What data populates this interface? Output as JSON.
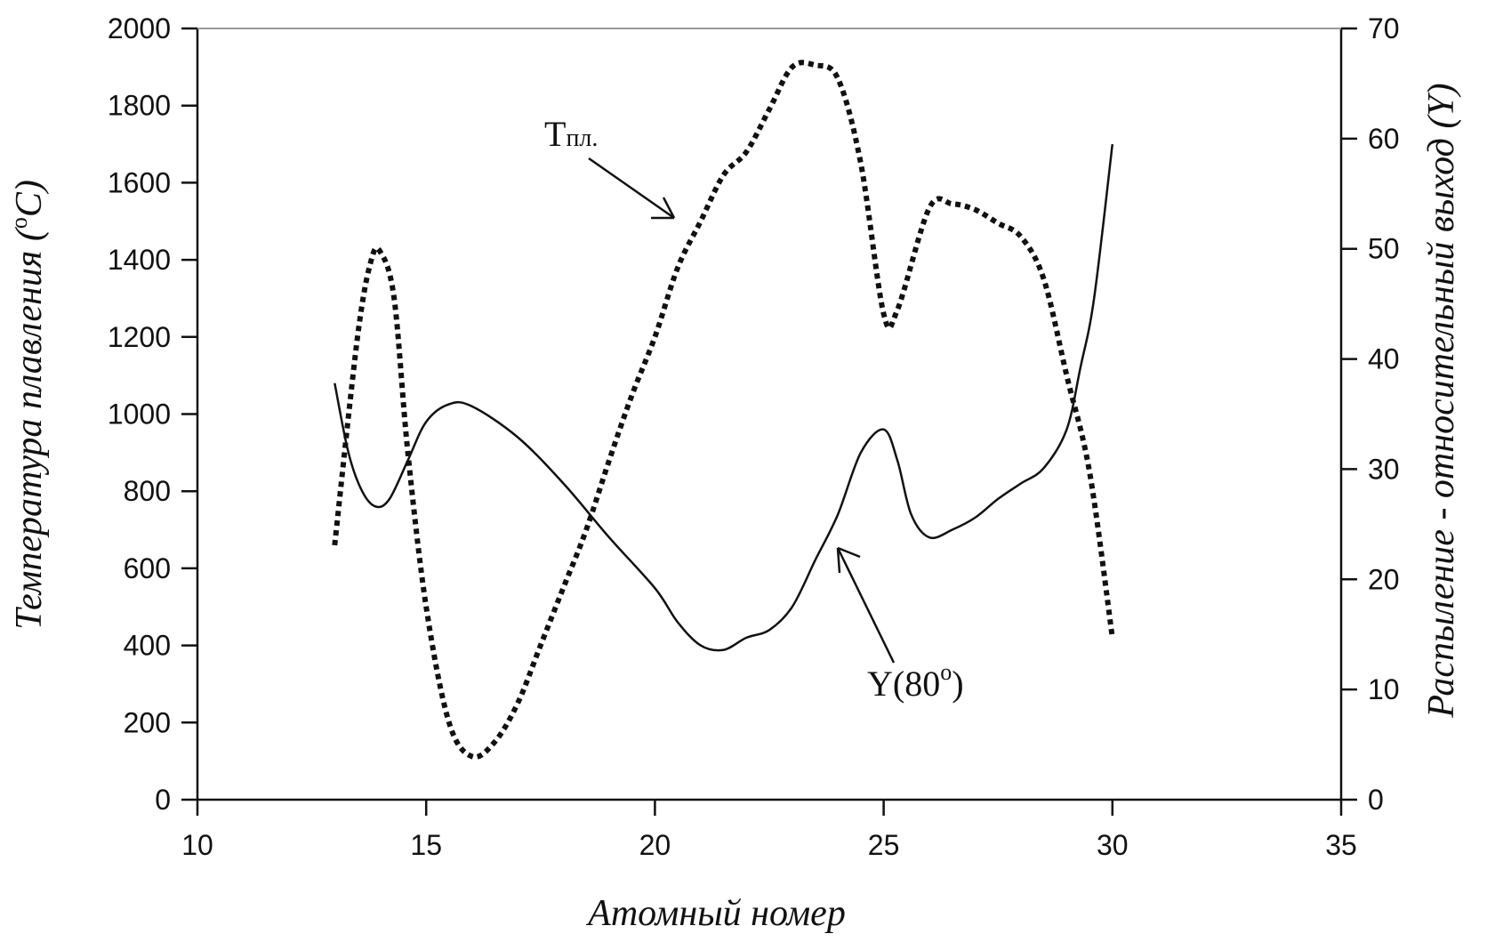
{
  "chart_data": {
    "type": "line",
    "title": "",
    "xlabel": "Атомный номер",
    "ylabel_left": "Температура плавления (°C)",
    "ylabel_left_parts": {
      "text": "Температура плавления (",
      "sup": "o",
      "unit": "C)"
    },
    "ylabel_right": "Распыление - относительный выход (Y)",
    "xlim": [
      10,
      35
    ],
    "ylim_left": [
      0,
      2000
    ],
    "ylim_right": [
      0,
      70
    ],
    "x_ticks": [
      "10",
      "15",
      "20",
      "25",
      "30",
      "35"
    ],
    "y_left_ticks": [
      "0",
      "200",
      "400",
      "600",
      "800",
      "1000",
      "1200",
      "1400",
      "1600",
      "1800",
      "2000"
    ],
    "y_right_ticks": [
      "0",
      "10",
      "20",
      "30",
      "40",
      "50",
      "60",
      "70"
    ],
    "grid": false,
    "legend": "none",
    "annotations": [
      {
        "label": "Tпл.",
        "main": "T",
        "sub": "пл.",
        "series": "melting"
      },
      {
        "label": "Y(80°)",
        "main": "Y(80",
        "sup": "o",
        "close": ")",
        "series": "yield"
      }
    ],
    "series": [
      {
        "id": "melting",
        "axis": "left",
        "style": "dotted",
        "color": "#111111",
        "points": [
          [
            13,
            660
          ],
          [
            13.5,
            1200
          ],
          [
            13.8,
            1400
          ],
          [
            14.0,
            1420
          ],
          [
            14.3,
            1300
          ],
          [
            14.6,
            900
          ],
          [
            15.0,
            500
          ],
          [
            15.5,
            200
          ],
          [
            16.0,
            112
          ],
          [
            16.5,
            150
          ],
          [
            17.0,
            250
          ],
          [
            17.5,
            400
          ],
          [
            18.0,
            550
          ],
          [
            18.5,
            700
          ],
          [
            19.0,
            880
          ],
          [
            19.5,
            1050
          ],
          [
            20.0,
            1200
          ],
          [
            20.5,
            1380
          ],
          [
            21.0,
            1500
          ],
          [
            21.5,
            1620
          ],
          [
            22.0,
            1680
          ],
          [
            22.5,
            1790
          ],
          [
            23.0,
            1900
          ],
          [
            23.5,
            1905
          ],
          [
            24.0,
            1870
          ],
          [
            24.5,
            1650
          ],
          [
            25.0,
            1260
          ],
          [
            25.3,
            1270
          ],
          [
            26.0,
            1535
          ],
          [
            26.5,
            1545
          ],
          [
            27.0,
            1530
          ],
          [
            27.5,
            1495
          ],
          [
            28.0,
            1460
          ],
          [
            28.5,
            1350
          ],
          [
            29.0,
            1100
          ],
          [
            29.5,
            850
          ],
          [
            30.0,
            420
          ]
        ]
      },
      {
        "id": "yield",
        "axis": "right",
        "style": "solid",
        "color": "#111111",
        "points": [
          [
            13.0,
            37.8
          ],
          [
            13.3,
            31.5
          ],
          [
            13.6,
            28.0
          ],
          [
            13.9,
            26.6
          ],
          [
            14.2,
            27.3
          ],
          [
            14.6,
            30.8
          ],
          [
            15.0,
            34.3
          ],
          [
            15.5,
            35.9
          ],
          [
            16.0,
            35.7
          ],
          [
            17.0,
            32.9
          ],
          [
            18.0,
            28.7
          ],
          [
            19.0,
            23.8
          ],
          [
            20.0,
            19.2
          ],
          [
            20.5,
            16.1
          ],
          [
            21.0,
            14.0
          ],
          [
            21.5,
            13.6
          ],
          [
            22.0,
            14.7
          ],
          [
            22.5,
            15.4
          ],
          [
            23.0,
            17.5
          ],
          [
            23.5,
            21.7
          ],
          [
            24.0,
            25.9
          ],
          [
            24.5,
            31.5
          ],
          [
            25.0,
            33.6
          ],
          [
            25.3,
            30.8
          ],
          [
            25.6,
            25.9
          ],
          [
            26.0,
            23.8
          ],
          [
            26.5,
            24.5
          ],
          [
            27.0,
            25.6
          ],
          [
            27.5,
            27.3
          ],
          [
            28.0,
            28.7
          ],
          [
            28.5,
            30.1
          ],
          [
            29.0,
            33.6
          ],
          [
            29.3,
            39.2
          ],
          [
            29.6,
            45.5
          ],
          [
            30.0,
            59.5
          ]
        ]
      }
    ]
  }
}
